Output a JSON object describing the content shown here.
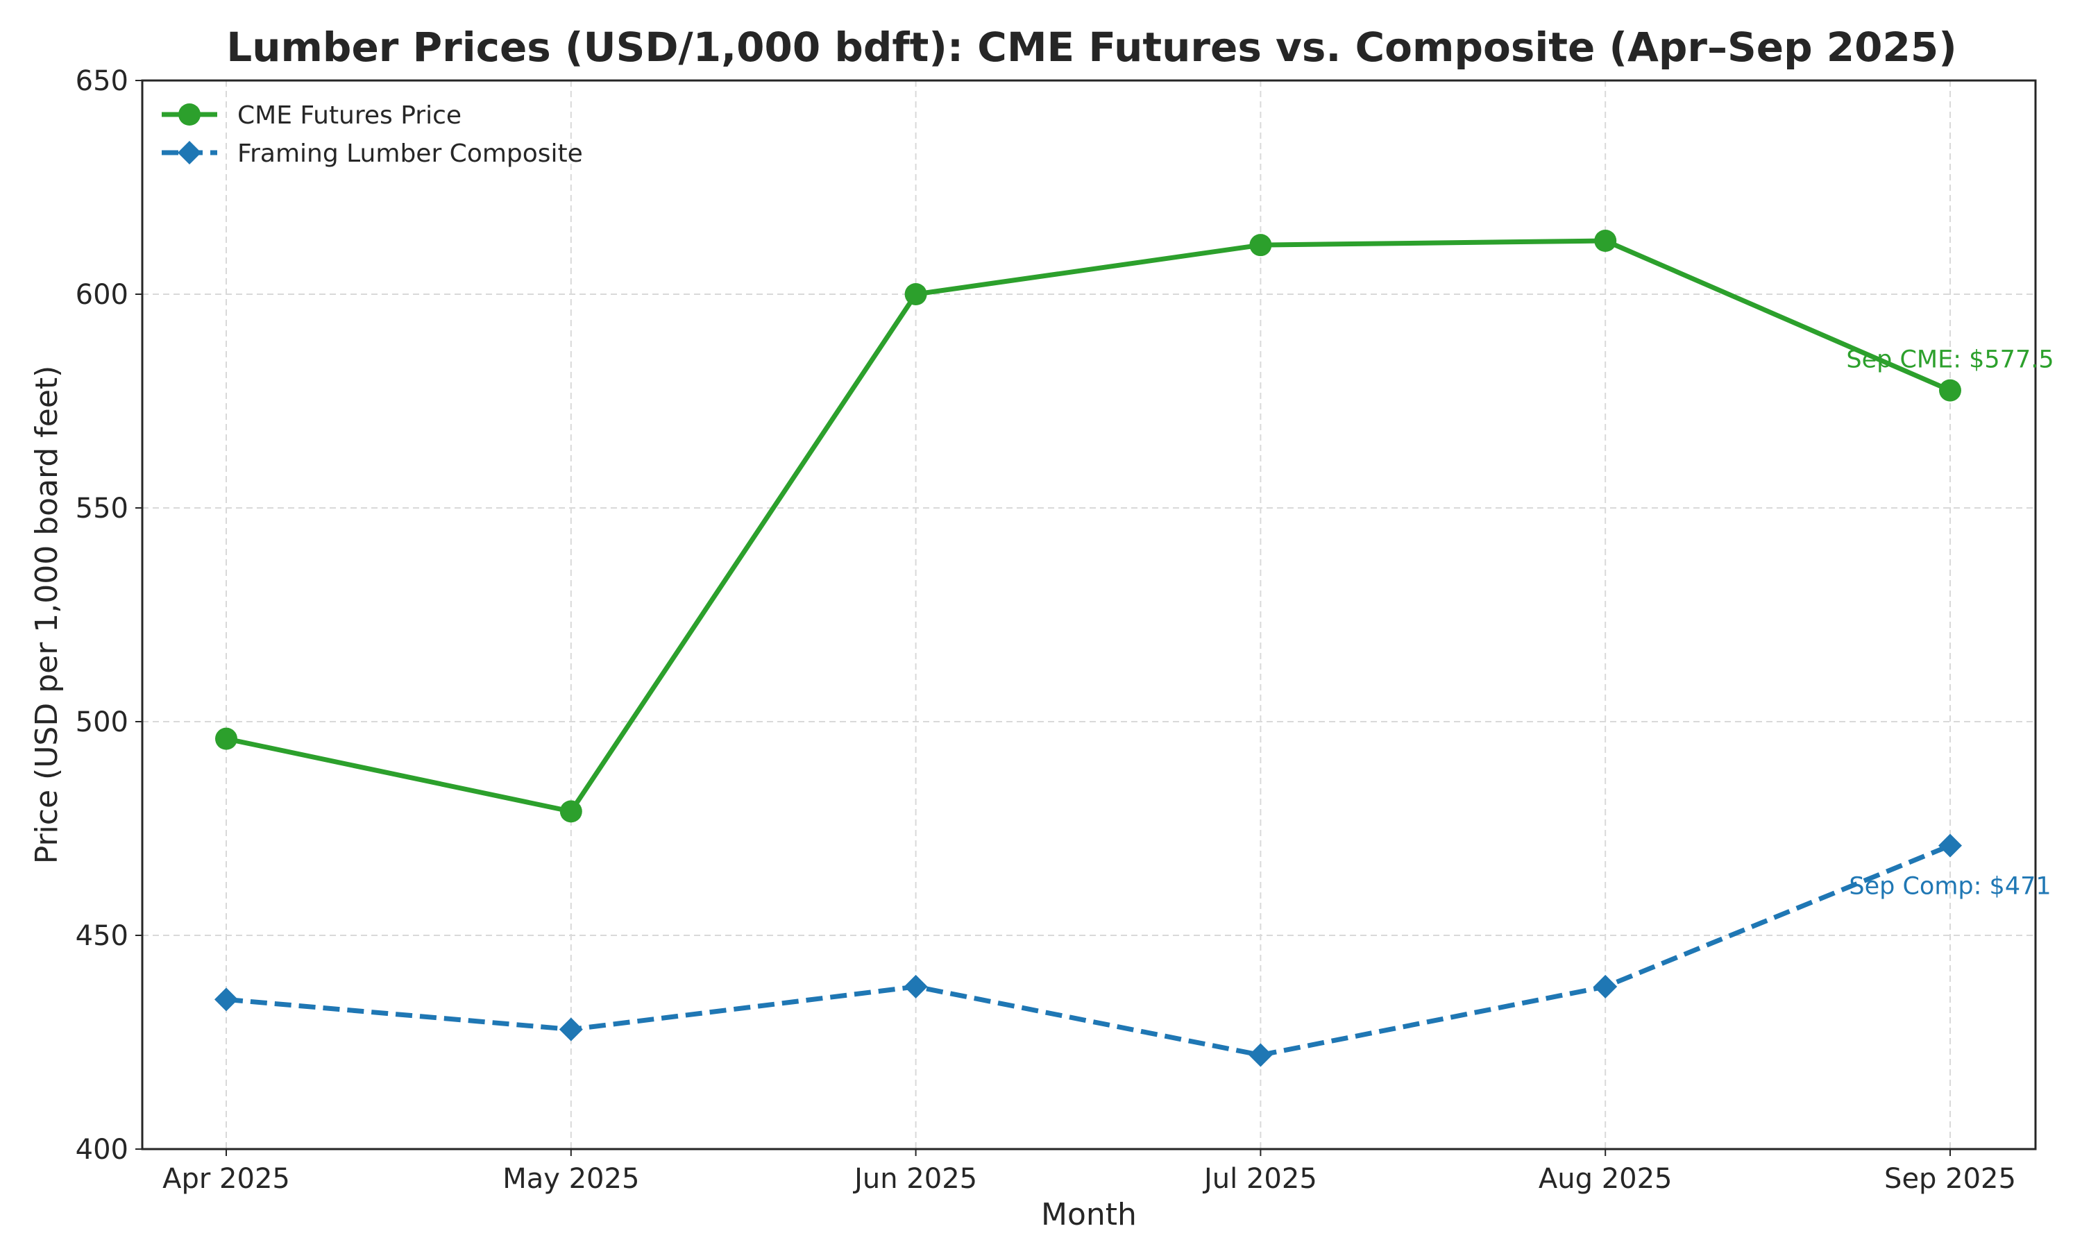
{
  "chart_data": {
    "type": "line",
    "title": "Lumber Prices (USD/1,000 bdft): CME Futures vs. Composite (Apr–Sep 2025)",
    "xlabel": "Month",
    "ylabel": "Price (USD per 1,000 board feet)",
    "categories": [
      "Apr 2025",
      "May 2025",
      "Jun 2025",
      "Jul 2025",
      "Aug 2025",
      "Sep 2025"
    ],
    "ylim": [
      400,
      650
    ],
    "yticks": [
      "400",
      "450",
      "500",
      "550",
      "600",
      "650"
    ],
    "grid": true,
    "legend_position": "top-left",
    "series": [
      {
        "name": "CME Futures Price",
        "values": [
          496,
          479,
          600,
          611.5,
          612.5,
          577.5
        ],
        "color": "#2ca02c",
        "marker": "circle",
        "line_style": "solid"
      },
      {
        "name": "Framing Lumber Composite",
        "values": [
          435,
          428,
          438,
          422,
          438,
          471
        ],
        "color": "#1f77b4",
        "marker": "diamond",
        "line_style": "dashed"
      }
    ],
    "annotations": [
      {
        "text": "Sep CME: $577.5",
        "series": 0,
        "point": 5,
        "color": "#2ca02c"
      },
      {
        "text": "Sep Comp: $471",
        "series": 1,
        "point": 5,
        "color": "#1f77b4"
      }
    ]
  }
}
